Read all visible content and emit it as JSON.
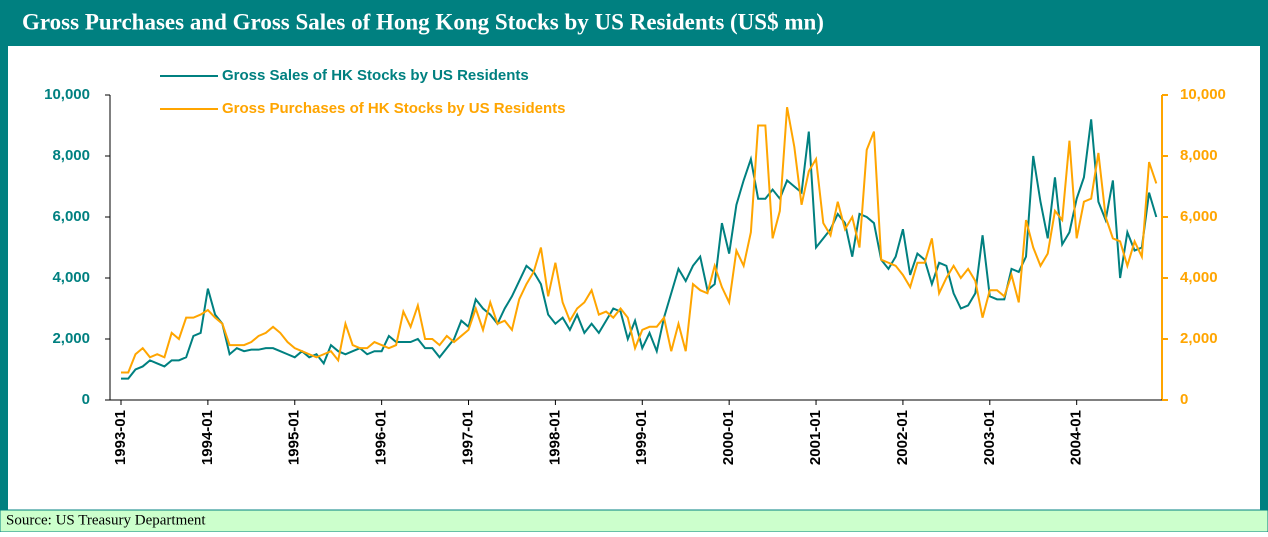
{
  "chart_data": {
    "type": "line",
    "title": "Gross Purchases and Gross Sales of Hong Kong Stocks by US Residents (US$ mn)",
    "source": "Source: US Treasury Department",
    "categories": [
      "1993-01",
      null,
      null,
      null,
      null,
      null,
      null,
      null,
      null,
      null,
      null,
      null,
      "1994-01",
      null,
      null,
      null,
      null,
      null,
      null,
      null,
      null,
      null,
      null,
      null,
      "1995-01",
      null,
      null,
      null,
      null,
      null,
      null,
      null,
      null,
      null,
      null,
      null,
      "1996-01",
      null,
      null,
      null,
      null,
      null,
      null,
      null,
      null,
      null,
      null,
      null,
      "1997-01",
      null,
      null,
      null,
      null,
      null,
      null,
      null,
      null,
      null,
      null,
      null,
      "1998-01",
      null,
      null,
      null,
      null,
      null,
      null,
      null,
      null,
      null,
      null,
      null,
      "1999-01",
      null,
      null,
      null,
      null,
      null,
      null,
      null,
      null,
      null,
      null,
      null,
      "2000-01",
      null,
      null,
      null,
      null,
      null,
      null,
      null,
      null,
      null,
      null,
      null,
      "2001-01",
      null,
      null,
      null,
      null,
      null,
      null,
      null,
      null,
      null,
      null,
      null,
      "2002-01",
      null,
      null,
      null,
      null,
      null,
      null,
      null,
      null,
      null,
      null,
      null,
      "2003-01",
      null,
      null,
      null,
      null,
      null,
      null,
      null,
      null,
      null,
      null,
      null,
      "2004-01",
      null,
      null,
      null,
      null,
      null,
      null,
      null,
      null,
      null,
      null,
      null
    ],
    "series": [
      {
        "name": "Gross Sales of HK Stocks by US Residents",
        "color": "#008080",
        "axis": "y",
        "values": [
          700,
          700,
          1000,
          1100,
          1300,
          1200,
          1100,
          1300,
          1300,
          1400,
          2100,
          2200,
          3650,
          2800,
          2500,
          1500,
          1700,
          1600,
          1650,
          1650,
          1700,
          1700,
          1600,
          1500,
          1400,
          1600,
          1400,
          1500,
          1200,
          1800,
          1600,
          1500,
          1600,
          1700,
          1500,
          1600,
          1600,
          2100,
          1900,
          1900,
          1900,
          2000,
          1700,
          1700,
          1400,
          1700,
          2000,
          2600,
          2400,
          3300,
          3000,
          2800,
          2500,
          3000,
          3400,
          3900,
          4400,
          4200,
          3800,
          2800,
          2500,
          2700,
          2300,
          2800,
          2200,
          2500,
          2200,
          2600,
          3000,
          2900,
          2000,
          2600,
          1700,
          2200,
          1600,
          2700,
          3500,
          4300,
          3900,
          4400,
          4700,
          3600,
          3800,
          5800,
          4800,
          6400,
          7200,
          7900,
          6600,
          6600,
          6900,
          6600,
          7200,
          7000,
          6800,
          8800,
          5000,
          5300,
          5600,
          6100,
          5800,
          4700,
          6100,
          6000,
          5800,
          4600,
          4300,
          4700,
          5600,
          4100,
          4800,
          4600,
          3800,
          4500,
          4400,
          3500,
          3000,
          3100,
          3500,
          5400,
          3400,
          3300,
          3300,
          4300,
          4200,
          4700,
          8000,
          6500,
          5300,
          7300,
          5100,
          5500,
          6600,
          7300,
          9200,
          6500,
          5900,
          7200,
          4000,
          5500,
          4900,
          5000,
          6800,
          6000
        ]
      },
      {
        "name": "Gross Purchases of HK Stocks by US Residents",
        "color": "#ffa500",
        "axis": "y2",
        "values": [
          900,
          900,
          1500,
          1700,
          1400,
          1500,
          1400,
          2200,
          2000,
          2700,
          2700,
          2800,
          2950,
          2700,
          2500,
          1800,
          1800,
          1800,
          1900,
          2100,
          2200,
          2400,
          2200,
          1900,
          1700,
          1600,
          1500,
          1400,
          1500,
          1600,
          1300,
          2500,
          1800,
          1700,
          1700,
          1900,
          1800,
          1700,
          1800,
          2900,
          2400,
          3100,
          2000,
          2000,
          1800,
          2100,
          1900,
          2100,
          2300,
          3000,
          2300,
          3200,
          2500,
          2600,
          2300,
          3300,
          3800,
          4200,
          5000,
          3400,
          4500,
          3200,
          2600,
          3000,
          3200,
          3600,
          2800,
          2900,
          2700,
          3000,
          2700,
          1700,
          2300,
          2400,
          2400,
          2700,
          1600,
          2500,
          1600,
          3800,
          3600,
          3500,
          4400,
          3700,
          3200,
          4900,
          4400,
          5500,
          9000,
          9000,
          5300,
          6200,
          9600,
          8300,
          6400,
          7500,
          7900,
          5800,
          5400,
          6500,
          5600,
          6000,
          5000,
          8200,
          8800,
          4600,
          4500,
          4400,
          4100,
          3700,
          4500,
          4500,
          5300,
          3500,
          4000,
          4400,
          4000,
          4300,
          3900,
          2700,
          3600,
          3600,
          3400,
          4100,
          3200,
          5900,
          5000,
          4400,
          4800,
          6200,
          5900,
          8500,
          5300,
          6500,
          6600,
          8100,
          6000,
          5300,
          5200,
          4400,
          5200,
          4700,
          7800,
          7100
        ]
      }
    ],
    "ylim": [
      0,
      10000
    ],
    "yticks": [
      0,
      {
        "value": 2000,
        "label": "2,000"
      },
      {
        "value": 4000,
        "label": "4,000"
      },
      {
        "value": 6000,
        "label": "6,000"
      },
      {
        "value": 8000,
        "label": "8,000"
      },
      {
        "value": 10000,
        "label": "10,000"
      }
    ],
    "y2lim": [
      0,
      10000
    ],
    "y2ticks": [
      0,
      {
        "value": 2000,
        "label": "2,000"
      },
      {
        "value": 4000,
        "label": "4,000"
      },
      {
        "value": 6000,
        "label": "6,000"
      },
      {
        "value": 8000,
        "label": "8,000"
      },
      {
        "value": 10000,
        "label": "10,000"
      }
    ],
    "grid": false,
    "legend": "top"
  }
}
